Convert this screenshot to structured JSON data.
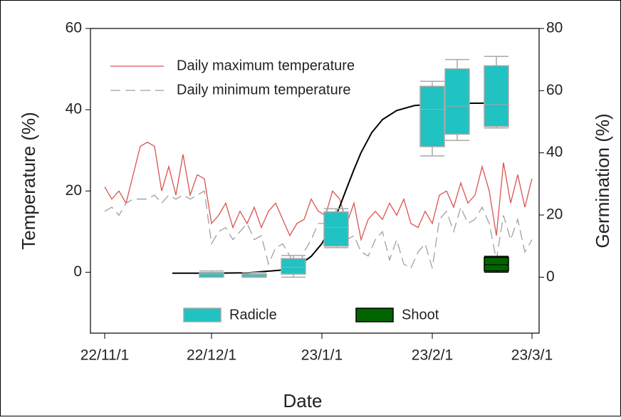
{
  "chart_data": {
    "type": "line",
    "x_label": "Date",
    "y_label": "Temperature (%)",
    "y2_label": "Germination (%)",
    "xlim": [
      -4,
      122
    ],
    "xticks": [
      {
        "value": 0,
        "label": "22/11/1"
      },
      {
        "value": 30,
        "label": "22/12/1"
      },
      {
        "value": 61,
        "label": "23/1/1"
      },
      {
        "value": 92,
        "label": "23/2/1"
      },
      {
        "value": 120,
        "label": "23/3/1"
      }
    ],
    "ylim": [
      -15,
      60
    ],
    "yticks": [
      0,
      20,
      40,
      60
    ],
    "y2lim": [
      -18,
      80
    ],
    "y2ticks": [
      0,
      20,
      40,
      60,
      80
    ],
    "series": [
      {
        "name": "Daily maximum temperature",
        "type": "line",
        "color": "#d9534f",
        "dash": false,
        "x": [
          0,
          2,
          4,
          6,
          8,
          10,
          12,
          14,
          16,
          18,
          20,
          22,
          24,
          26,
          28,
          30,
          32,
          34,
          36,
          38,
          40,
          42,
          44,
          46,
          48,
          50,
          52,
          54,
          56,
          58,
          60,
          62,
          64,
          66,
          68,
          70,
          72,
          74,
          76,
          78,
          80,
          82,
          84,
          86,
          88,
          90,
          92,
          94,
          96,
          98,
          100,
          102,
          104,
          106,
          108,
          110,
          112,
          114,
          116,
          118,
          120
        ],
        "values": [
          21,
          18,
          20,
          17,
          24,
          31,
          32,
          31,
          20,
          26,
          19,
          29,
          19,
          24,
          23,
          12,
          14,
          17,
          11,
          15,
          12,
          16,
          11,
          15,
          17,
          13,
          9,
          12,
          13,
          18,
          15,
          14,
          20,
          18,
          12,
          17,
          8,
          13,
          15,
          13,
          17,
          14,
          18,
          12,
          11,
          15,
          12,
          19,
          20,
          16,
          22,
          17,
          19,
          26,
          20,
          9,
          27,
          17,
          24,
          16,
          23
        ]
      },
      {
        "name": "Daily minimum temperature",
        "type": "line",
        "color": "#a0a0a0",
        "dash": true,
        "x": [
          0,
          2,
          4,
          6,
          8,
          10,
          12,
          14,
          16,
          18,
          20,
          22,
          24,
          26,
          28,
          30,
          32,
          34,
          36,
          38,
          40,
          42,
          44,
          46,
          48,
          50,
          52,
          54,
          56,
          58,
          60,
          62,
          64,
          66,
          68,
          70,
          72,
          74,
          76,
          78,
          80,
          82,
          84,
          86,
          88,
          90,
          92,
          94,
          96,
          98,
          100,
          102,
          104,
          106,
          108,
          110,
          112,
          114,
          116,
          118,
          120
        ],
        "values": [
          15,
          16,
          14,
          17,
          18,
          18,
          18,
          19,
          17,
          19,
          18,
          19,
          18,
          19,
          20,
          7,
          10,
          11,
          8,
          10,
          12,
          8,
          9,
          2,
          6,
          7,
          4,
          0,
          5,
          8,
          12,
          12,
          14,
          12,
          8,
          9,
          5,
          4,
          8,
          10,
          3,
          8,
          2,
          1,
          5,
          7,
          1,
          13,
          15,
          10,
          16,
          12,
          13,
          16,
          12,
          3,
          14,
          8,
          13,
          5,
          8
        ]
      },
      {
        "type": "line",
        "axis": "y2",
        "color": "#000000",
        "dash": false,
        "x": [
          19,
          30,
          40,
          50,
          55,
          58,
          61,
          64,
          66,
          68,
          70,
          72,
          75,
          78,
          82,
          87,
          95,
          110
        ],
        "values": [
          1.3,
          1.3,
          1.4,
          2.3,
          4.2,
          6.7,
          10.8,
          17.2,
          22.7,
          28.7,
          34.6,
          40.1,
          46.5,
          50.7,
          53.6,
          55.2,
          55.9,
          56.0
        ]
      },
      {
        "name": "Radicle",
        "type": "box",
        "axis": "y2",
        "color": "#20c2c2",
        "edge": "#a8a8a8",
        "x": [
          30,
          42,
          53,
          65,
          92,
          99,
          110
        ],
        "low": [
          0,
          0,
          0,
          9.5,
          39,
          44,
          48
        ],
        "q1": [
          0,
          0,
          1,
          10,
          42,
          46,
          48.5
        ],
        "median": [
          1,
          0.5,
          3.2,
          16,
          54,
          55,
          55.5
        ],
        "q3": [
          1.5,
          1,
          6,
          21,
          61.4,
          67,
          68
        ],
        "high": [
          2,
          1.5,
          7,
          22,
          63,
          70,
          71
        ]
      },
      {
        "name": "Shoot",
        "type": "box",
        "axis": "y2",
        "color": "#006400",
        "edge": "#000000",
        "x": [
          110
        ],
        "low": [
          1.6
        ],
        "q1": [
          2
        ],
        "median": [
          4
        ],
        "q3": [
          6.4
        ],
        "high": [
          6.7
        ]
      }
    ]
  }
}
